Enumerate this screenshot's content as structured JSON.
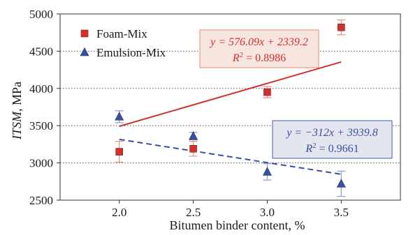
{
  "chart_data": {
    "type": "scatter",
    "xlabel": "Bitumen binder content, %",
    "ylabel": "ITSM, MPa",
    "ylabel_parts": {
      "symbol": "ITSM",
      "rest": ", MPa"
    },
    "xlim": [
      1.6,
      3.9
    ],
    "ylim": [
      2500,
      5000
    ],
    "x_ticks": [
      2.0,
      2.5,
      3.0,
      3.5
    ],
    "x_tick_labels": [
      "2.0",
      "2.5",
      "3.0",
      "3.5"
    ],
    "y_ticks": [
      2500,
      3000,
      3500,
      4000,
      4500,
      5000
    ],
    "y_tick_labels": [
      "2500",
      "3000",
      "3500",
      "4000",
      "4500",
      "5000"
    ],
    "grid": {
      "horizontal": true,
      "style": "dotted"
    },
    "legend_position": "top-left",
    "series": [
      {
        "name": "Foam-Mix",
        "marker": "square",
        "color": "#d0312d",
        "x": [
          2.0,
          2.5,
          3.0,
          3.5
        ],
        "y": [
          3150,
          3190,
          3950,
          4820
        ],
        "error": [
          140,
          100,
          75,
          100
        ],
        "error_color": "#e8907a",
        "trendline": {
          "style": "solid",
          "slope": 576.09,
          "intercept": 2339.2,
          "x_range": [
            2.0,
            3.5
          ],
          "equation": {
            "prefix": "y = ",
            "body": "576.09x + 2339.2"
          },
          "r2": {
            "label": "R",
            "sup": "2",
            "value": " = 0.8986"
          },
          "box_fill": "#f7e6df",
          "box_stroke": "#e38a6a"
        }
      },
      {
        "name": "Emulsion-Mix",
        "marker": "triangle",
        "color": "#3a4fa0",
        "x": [
          2.0,
          2.5,
          3.0,
          3.5
        ],
        "y": [
          3620,
          3360,
          2880,
          2720
        ],
        "error": [
          80,
          50,
          110,
          170
        ],
        "error_color": "#8a9ad0",
        "trendline": {
          "style": "dashed",
          "slope": -312,
          "intercept": 3939.8,
          "x_range": [
            2.0,
            3.5
          ],
          "equation": {
            "prefix": "y = ",
            "body": "−312x + 3939.8"
          },
          "r2": {
            "label": "R",
            "sup": "2",
            "value": " = 0.9661"
          },
          "box_fill": "#e3e5ef",
          "box_stroke": "#4a5aa8"
        }
      }
    ]
  }
}
